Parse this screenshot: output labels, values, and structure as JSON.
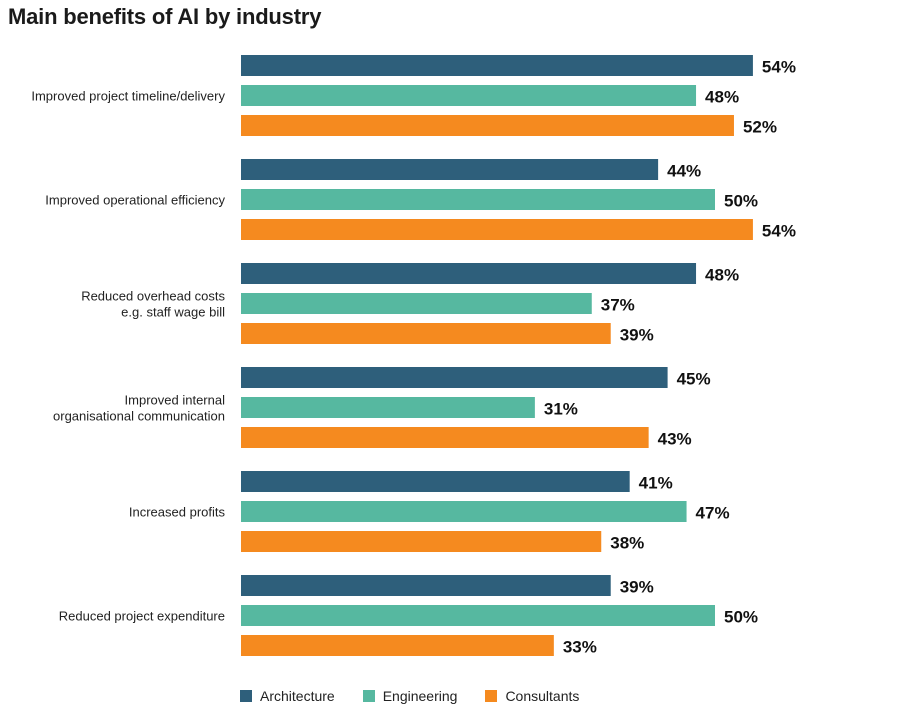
{
  "chart_data": {
    "type": "bar",
    "orientation": "horizontal",
    "title": "Main benefits of AI by industry",
    "categories": [
      [
        "Improved project timeline/delivery"
      ],
      [
        "Improved operational efficiency"
      ],
      [
        "Reduced overhead costs",
        "e.g. staff wage bill"
      ],
      [
        "Improved internal",
        "organisational communication"
      ],
      [
        "Increased profits"
      ],
      [
        "Reduced project expenditure"
      ]
    ],
    "series": [
      {
        "name": "Architecture",
        "color": "#2e5f7b",
        "values": [
          54,
          44,
          48,
          45,
          41,
          39
        ]
      },
      {
        "name": "Engineering",
        "color": "#56b8a0",
        "values": [
          48,
          50,
          37,
          31,
          47,
          50
        ]
      },
      {
        "name": "Consultants",
        "color": "#f58a1f",
        "values": [
          52,
          54,
          39,
          43,
          38,
          33
        ]
      }
    ],
    "value_suffix": "%",
    "xlim": [
      0,
      54
    ],
    "xlabel": "",
    "ylabel": "",
    "legend_position": "bottom"
  }
}
